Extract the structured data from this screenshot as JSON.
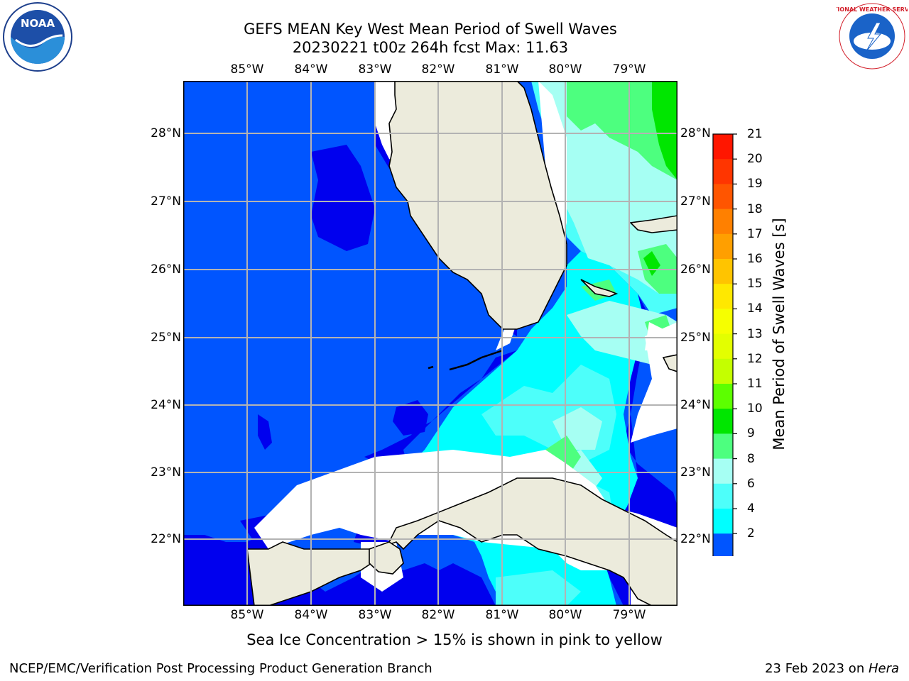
{
  "title_line1": "GEFS MEAN Key West Mean Period of Swell Waves",
  "title_line2": "20230221 t00z 264h fcst   Max: 11.63",
  "map": {
    "lon_labels": [
      "85°W",
      "84°W",
      "83°W",
      "82°W",
      "81°W",
      "80°W",
      "79°W"
    ],
    "lat_labels": [
      "28°N",
      "27°N",
      "26°N",
      "25°N",
      "24°N",
      "23°N",
      "22°N"
    ],
    "land_color": "#ecebdc",
    "colors": {
      "2-4": "#0055ff",
      "<2": "#0000ee",
      "4-6": "#00ffff",
      "6-8": "#4dfffa",
      "8-9": "#a6fff3",
      "9-10": "#4dff7f",
      "10-11": "#00e600",
      "no_data": "#ffffff"
    }
  },
  "colorbar": {
    "title": "Mean Period of Swell Waves [s]",
    "ticks": [
      "21",
      "20",
      "19",
      "18",
      "17",
      "16",
      "15",
      "14",
      "13",
      "12",
      "11",
      "10",
      "9",
      "8",
      "6",
      "4",
      "2"
    ],
    "colors": [
      "#ff1600",
      "#ff3500",
      "#ff5500",
      "#ff8000",
      "#ff9f00",
      "#ffc400",
      "#ffe800",
      "#f6ff00",
      "#e3ff00",
      "#c4ff00",
      "#5cff00",
      "#00e600",
      "#4dff7f",
      "#a6fff3",
      "#4dfffa",
      "#00ffff",
      "#0055ff"
    ],
    "under_color": "#0000ee"
  },
  "caption": "Sea Ice Concentration > 15% is shown in pink to yellow",
  "footer_left": "NCEP/EMC/Verification Post Processing Product Generation Branch",
  "footer_right_prefix": "23 Feb 2023 on ",
  "footer_right_machine": "Hera",
  "logos": {
    "noaa_text": "NOAA",
    "nws_text": "NATIONAL WEATHER SERVICE"
  }
}
